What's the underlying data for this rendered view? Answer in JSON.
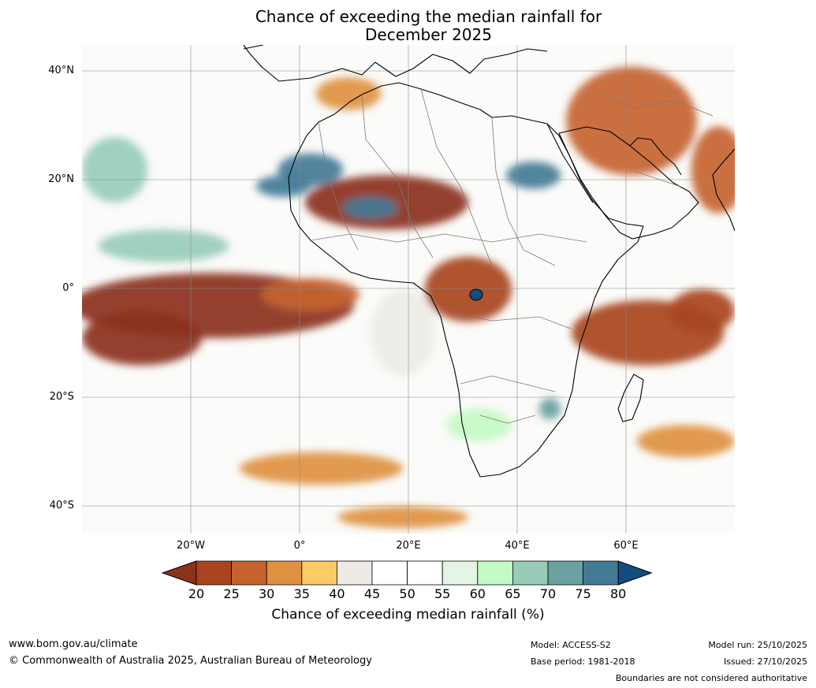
{
  "title": {
    "line1": "Chance of exceeding the median rainfall for",
    "line2": "December 2025"
  },
  "axes": {
    "lat_labels": [
      "40°N",
      "20°N",
      "0°",
      "20°S",
      "40°S"
    ],
    "lon_labels": [
      "20°W",
      "0°",
      "20°E",
      "40°E",
      "60°E"
    ]
  },
  "legend": {
    "label": "Chance of exceeding median rainfall (%)",
    "ticks": [
      "20",
      "25",
      "30",
      "35",
      "40",
      "45",
      "50",
      "55",
      "60",
      "65",
      "70",
      "75",
      "80"
    ],
    "colors": [
      "#8b321b",
      "#a8441f",
      "#c5632f",
      "#de9141",
      "#fcca67",
      "#eeebe6",
      "#ffffff",
      "#ffffff",
      "#e5f5e5",
      "#c4fac4",
      "#98ccb8",
      "#6aa1a1",
      "#437b96",
      "#124d80"
    ]
  },
  "footer": {
    "website": "www.bom.gov.au/climate",
    "copyright": "© Commonwealth of Australia 2025, Australian Bureau of Meteorology",
    "model": "Model: ACCESS-S2",
    "base_period": "Base period: 1981-2018",
    "model_run": "Model run: 25/10/2025",
    "issued": "Issued: 27/10/2025",
    "disclaimer": "Boundaries are not considered authoritative"
  },
  "map_data": {
    "extent": {
      "lon": [
        -39,
        81
      ],
      "lat": [
        -45,
        45
      ]
    },
    "regions": [
      {
        "name": "equatorial-atlantic-dry",
        "lon": -15,
        "lat": -3,
        "rx": 26,
        "ry": 6,
        "level": 20
      },
      {
        "name": "south-atlantic-dry",
        "lon": -28,
        "lat": -9,
        "rx": 11,
        "ry": 5,
        "level": 20
      },
      {
        "name": "gulf-of-guinea-dry",
        "lon": 3,
        "lat": -1,
        "rx": 9,
        "ry": 3,
        "level": 30
      },
      {
        "name": "sahel-dry",
        "lon": 17,
        "lat": 16,
        "rx": 15,
        "ry": 5,
        "level": 20
      },
      {
        "name": "sahara-wet-west",
        "lon": 3,
        "lat": 22,
        "rx": 6,
        "ry": 3,
        "level": 80
      },
      {
        "name": "sahara-wet-sw",
        "lon": -2,
        "lat": 19,
        "rx": 5,
        "ry": 2,
        "level": 80
      },
      {
        "name": "sahara-wet-central",
        "lon": 14,
        "lat": 15,
        "rx": 5,
        "ry": 2,
        "level": 80
      },
      {
        "name": "arabia-wet",
        "lon": 44,
        "lat": 21,
        "rx": 5,
        "ry": 2.5,
        "level": 80
      },
      {
        "name": "east-africa-dry",
        "lon": 32,
        "lat": 0,
        "rx": 8,
        "ry": 6,
        "level": 25
      },
      {
        "name": "indian-ocean-dry",
        "lon": 65,
        "lat": -8,
        "rx": 14,
        "ry": 6,
        "level": 25
      },
      {
        "name": "indian-ocean-east-dry",
        "lon": 75,
        "lat": -4,
        "rx": 6,
        "ry": 4,
        "level": 25
      },
      {
        "name": "iran-dry",
        "lon": 62,
        "lat": 31,
        "rx": 12,
        "ry": 10,
        "level": 30
      },
      {
        "name": "india-dry",
        "lon": 78,
        "lat": 22,
        "rx": 5,
        "ry": 8,
        "level": 30
      },
      {
        "name": "mediterranean-dry",
        "lon": 10,
        "lat": 36,
        "rx": 6,
        "ry": 3,
        "level": 35
      },
      {
        "name": "north-atlantic-wet",
        "lon": -33,
        "lat": 22,
        "rx": 6,
        "ry": 6,
        "level": 70
      },
      {
        "name": "west-africa-wet",
        "lon": -24,
        "lat": 8,
        "rx": 12,
        "ry": 3,
        "level": 70
      },
      {
        "name": "southern-africa-wet",
        "lon": 34,
        "lat": -25,
        "rx": 6,
        "ry": 3,
        "level": 65
      },
      {
        "name": "madagascar-wet",
        "lon": 47,
        "lat": -22,
        "rx": 2,
        "ry": 2,
        "level": 75
      },
      {
        "name": "south-atlantic-mixed-dry",
        "lon": 5,
        "lat": -33,
        "rx": 15,
        "ry": 3,
        "level": 35
      },
      {
        "name": "south-indian-dry",
        "lon": 72,
        "lat": -28,
        "rx": 9,
        "ry": 3,
        "level": 35
      },
      {
        "name": "congo-neutral",
        "lon": 20,
        "lat": -8,
        "rx": 6,
        "ry": 8,
        "level": 45
      },
      {
        "name": "southern-ocean-dry",
        "lon": 20,
        "lat": -42,
        "rx": 12,
        "ry": 2,
        "level": 35
      }
    ]
  }
}
